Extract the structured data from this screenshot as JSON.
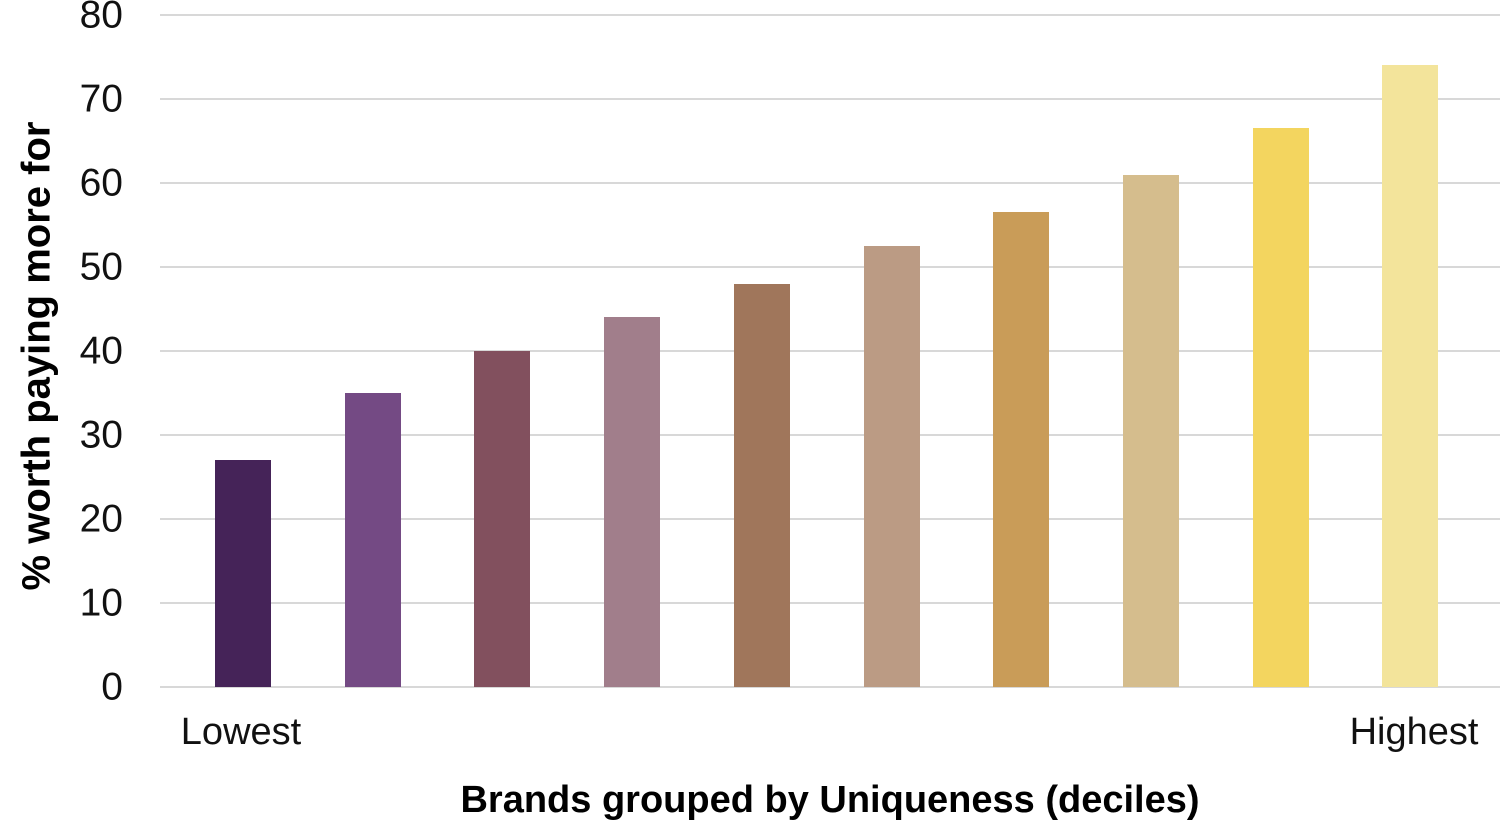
{
  "chart_data": {
    "type": "bar",
    "title": "",
    "xlabel": "Brands grouped by Uniqueness (deciles)",
    "ylabel": "% worth paying more for",
    "ylim": [
      0,
      80
    ],
    "yticks": [
      0,
      10,
      20,
      30,
      40,
      50,
      60,
      70,
      80
    ],
    "x_axis_end_labels": {
      "first": "Lowest",
      "last": "Highest"
    },
    "n_bars": 10,
    "values": [
      27,
      35,
      40,
      44,
      48,
      52.5,
      56.5,
      61,
      66.5,
      74
    ],
    "bar_colors": [
      "#452358",
      "#744A84",
      "#82505E",
      "#A17E8B",
      "#A0765B",
      "#BB9B84",
      "#C99C58",
      "#D5BD8D",
      "#F3D55F",
      "#F3E49B"
    ],
    "gridline_color": "#d8d8d8",
    "grid": "horizontal",
    "legend": "none"
  }
}
